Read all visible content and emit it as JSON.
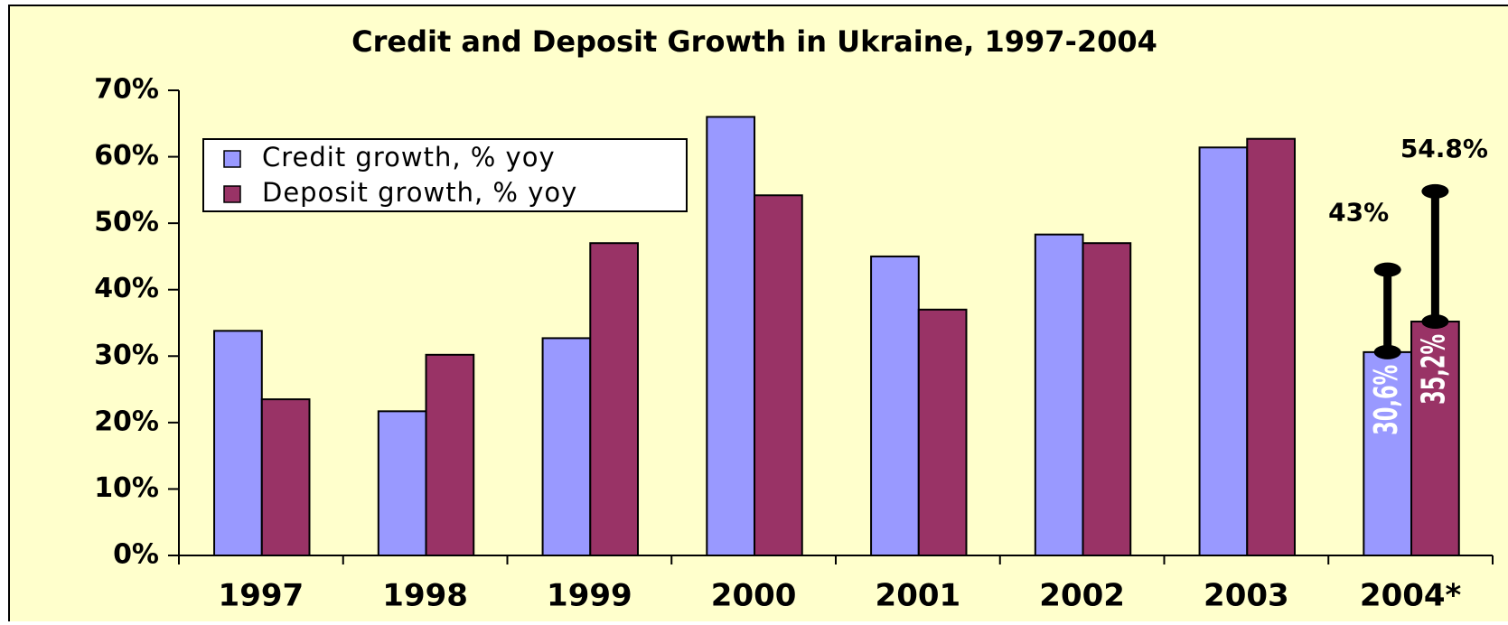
{
  "chart_data": {
    "type": "bar",
    "title": "Credit and Deposit Growth in Ukraine, 1997-2004",
    "categories": [
      "1997",
      "1998",
      "1999",
      "2000",
      "2001",
      "2002",
      "2003",
      "2004*"
    ],
    "series": [
      {
        "name": "Credit growth, % yoy",
        "color": "#9999ff",
        "values": [
          33.8,
          21.7,
          32.7,
          66,
          45,
          48.3,
          61.4,
          30.6
        ],
        "value_labels": [
          null,
          null,
          null,
          null,
          null,
          null,
          null,
          "30,6%"
        ]
      },
      {
        "name": "Deposit growth, % yoy",
        "color": "#993366",
        "values": [
          23.5,
          30.2,
          47,
          54.2,
          37,
          47,
          62.7,
          35.2
        ],
        "value_labels": [
          null,
          null,
          null,
          null,
          null,
          null,
          null,
          "35,2%"
        ]
      }
    ],
    "annotations": [
      {
        "text": "43%",
        "value": 43
      },
      {
        "text": "54.8%",
        "value": 54.8
      }
    ],
    "ylim": [
      0,
      70
    ],
    "yticks": [
      {
        "value": 0,
        "label": "0%"
      },
      {
        "value": 10,
        "label": "10%"
      },
      {
        "value": 20,
        "label": "20%"
      },
      {
        "value": 30,
        "label": "30%"
      },
      {
        "value": 40,
        "label": "40%"
      },
      {
        "value": 50,
        "label": "50%"
      },
      {
        "value": 60,
        "label": "60%"
      },
      {
        "value": 70,
        "label": "70%"
      }
    ],
    "legend": "upper left"
  }
}
